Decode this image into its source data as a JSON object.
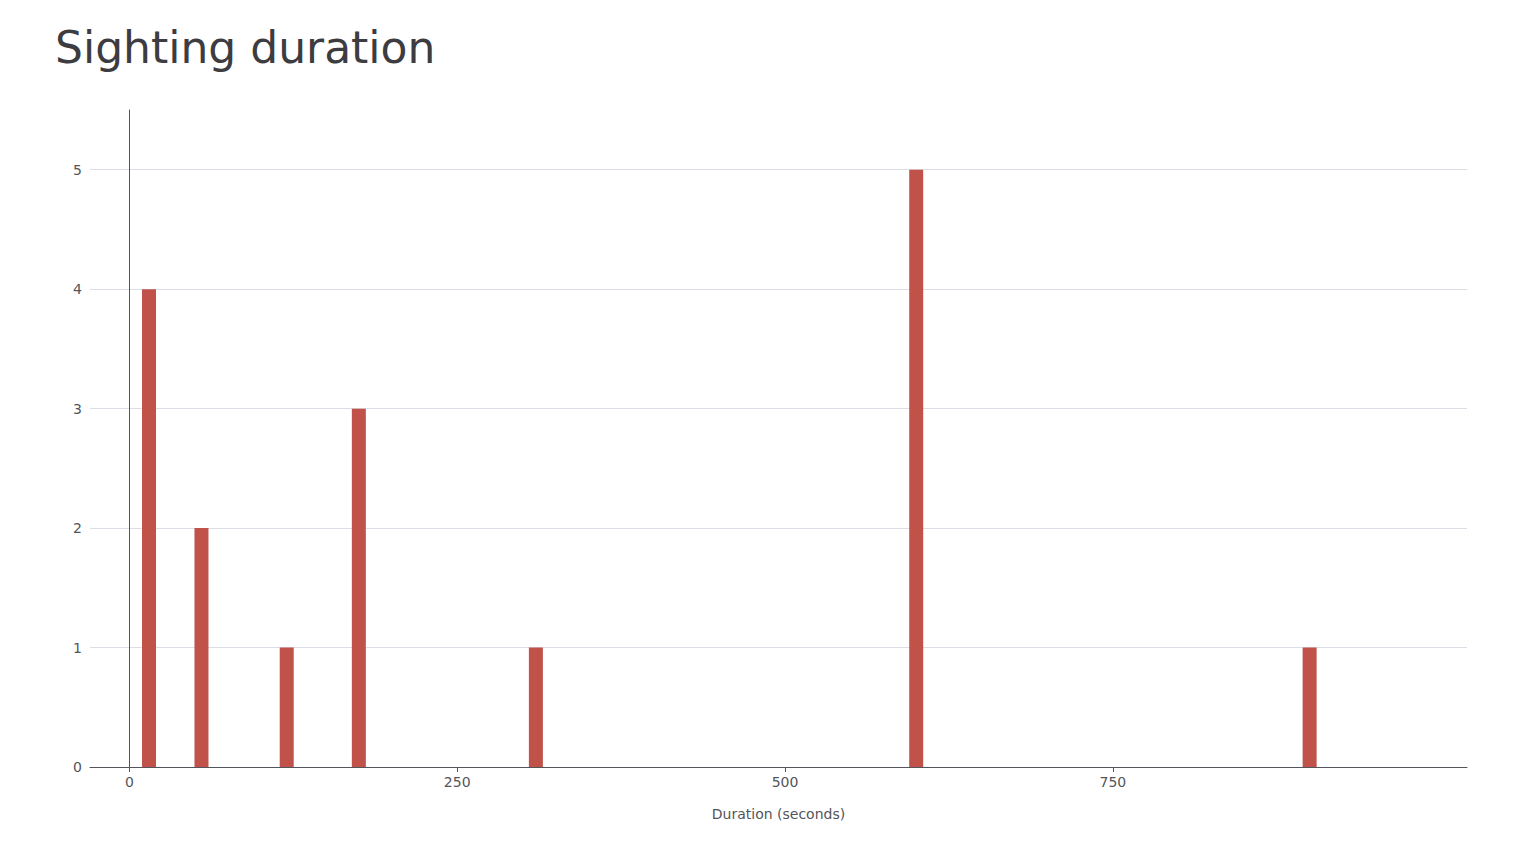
{
  "chart_data": {
    "type": "bar",
    "title": "Sighting duration",
    "xlabel": "Duration (seconds)",
    "x": [
      15,
      55,
      120,
      175,
      310,
      600,
      900
    ],
    "values": [
      4,
      2,
      1,
      3,
      1,
      5,
      1
    ],
    "color": "#c0524a",
    "xlim": [
      -30,
      1020
    ],
    "ylim": [
      0,
      5.5
    ],
    "xticks": [
      0,
      250,
      500,
      750
    ],
    "yticks": [
      0,
      1,
      2,
      3,
      4,
      5
    ],
    "grid": true
  }
}
